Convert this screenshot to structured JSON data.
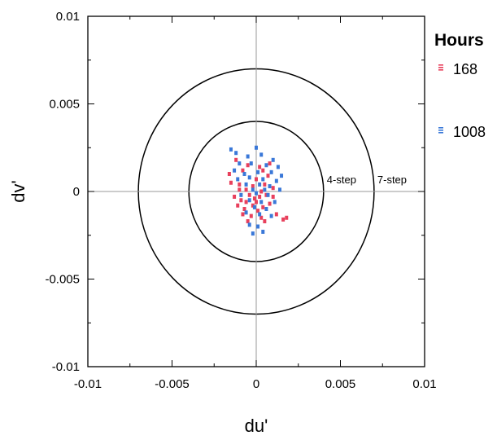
{
  "chart_data": {
    "type": "scatter",
    "xlabel": "du'",
    "ylabel": "dv'",
    "xlim": [
      -0.01,
      0.01
    ],
    "ylim": [
      -0.01,
      0.01
    ],
    "x_ticks": [
      "-0.01",
      "-0.005",
      "0",
      "0.005",
      "0.01"
    ],
    "y_ticks": [
      "0.01",
      "0.005",
      "0",
      "-0.005",
      "-0.01"
    ],
    "x_tick_values": [
      -0.01,
      -0.005,
      0,
      0.005,
      0.01
    ],
    "y_tick_values": [
      0.01,
      0.005,
      0,
      -0.005,
      -0.01
    ],
    "legend": {
      "title": "Hours",
      "placement": "right"
    },
    "circles": [
      {
        "label": "4-step",
        "radius": 0.004
      },
      {
        "label": "7-step",
        "radius": 0.007
      }
    ],
    "series": [
      {
        "name": "168",
        "color": "#e8405c",
        "points": [
          [
            -0.0012,
            0.0018
          ],
          [
            -0.0008,
            0.0012
          ],
          [
            -0.0005,
            0.0015
          ],
          [
            0.0002,
            0.0014
          ],
          [
            0.0008,
            0.0016
          ],
          [
            -0.0015,
            0.0005
          ],
          [
            -0.001,
            0.0004
          ],
          [
            0.0,
            0.0007
          ],
          [
            0.0005,
            0.0004
          ],
          [
            -0.0006,
            0.0001
          ],
          [
            0.0003,
            0.0
          ],
          [
            0.001,
            0.0002
          ],
          [
            -0.0013,
            -0.0003
          ],
          [
            -0.0009,
            -0.0005
          ],
          [
            -0.0004,
            -0.0002
          ],
          [
            -0.0001,
            -0.0004
          ],
          [
            0.0002,
            -0.0003
          ],
          [
            0.0006,
            -0.0002
          ],
          [
            -0.0011,
            -0.0008
          ],
          [
            -0.0007,
            -0.001
          ],
          [
            -0.0002,
            -0.0008
          ],
          [
            0.0001,
            -0.0011
          ],
          [
            0.0004,
            -0.0009
          ],
          [
            0.0008,
            -0.0007
          ],
          [
            -0.0008,
            -0.0013
          ],
          [
            -0.0003,
            -0.0014
          ],
          [
            0.0003,
            -0.0015
          ],
          [
            0.0012,
            -0.0013
          ],
          [
            0.0016,
            -0.0016
          ],
          [
            0.0018,
            -0.0015
          ],
          [
            -0.0005,
            -0.0017
          ],
          [
            0.0005,
            -0.0017
          ],
          [
            -0.0016,
            0.001
          ],
          [
            0.0007,
            0.0009
          ],
          [
            -0.0002,
            0.0003
          ],
          [
            0.0,
            -0.0006
          ],
          [
            -0.0006,
            -0.0006
          ],
          [
            0.0004,
            0.0012
          ],
          [
            -0.001,
            0.0001
          ],
          [
            0.001,
            -0.0003
          ]
        ]
      },
      {
        "name": "1008",
        "color": "#3a78d8",
        "points": [
          [
            -0.0015,
            0.0024
          ],
          [
            -0.0012,
            0.0022
          ],
          [
            0.0,
            0.0025
          ],
          [
            -0.0005,
            0.002
          ],
          [
            0.0003,
            0.0021
          ],
          [
            0.001,
            0.0018
          ],
          [
            -0.001,
            0.0016
          ],
          [
            -0.0003,
            0.0016
          ],
          [
            0.0006,
            0.0015
          ],
          [
            0.0013,
            0.0014
          ],
          [
            -0.0007,
            0.001
          ],
          [
            0.0001,
            0.0011
          ],
          [
            0.0009,
            0.0011
          ],
          [
            0.0015,
            0.0009
          ],
          [
            -0.0011,
            0.0007
          ],
          [
            -0.0004,
            0.0008
          ],
          [
            0.0004,
            0.0007
          ],
          [
            0.0012,
            0.0006
          ],
          [
            -0.0006,
            0.0004
          ],
          [
            0.0002,
            0.0004
          ],
          [
            0.0008,
            0.0003
          ],
          [
            -0.0002,
            0.0001
          ],
          [
            0.0005,
            0.0001
          ],
          [
            0.0014,
            0.0001
          ],
          [
            -0.0009,
            -0.0002
          ],
          [
            0.0,
            -0.0001
          ],
          [
            0.0007,
            -0.0002
          ],
          [
            -0.0004,
            -0.0005
          ],
          [
            0.0003,
            -0.0006
          ],
          [
            0.0011,
            -0.0006
          ],
          [
            -0.0001,
            -0.0009
          ],
          [
            0.0006,
            -0.001
          ],
          [
            -0.0006,
            -0.0012
          ],
          [
            0.0002,
            -0.0013
          ],
          [
            0.0009,
            -0.0014
          ],
          [
            -0.0004,
            -0.0019
          ],
          [
            0.0001,
            -0.002
          ],
          [
            -0.0002,
            -0.0024
          ],
          [
            0.0004,
            -0.0023
          ],
          [
            -0.0013,
            0.0012
          ]
        ]
      }
    ],
    "grid": false
  }
}
